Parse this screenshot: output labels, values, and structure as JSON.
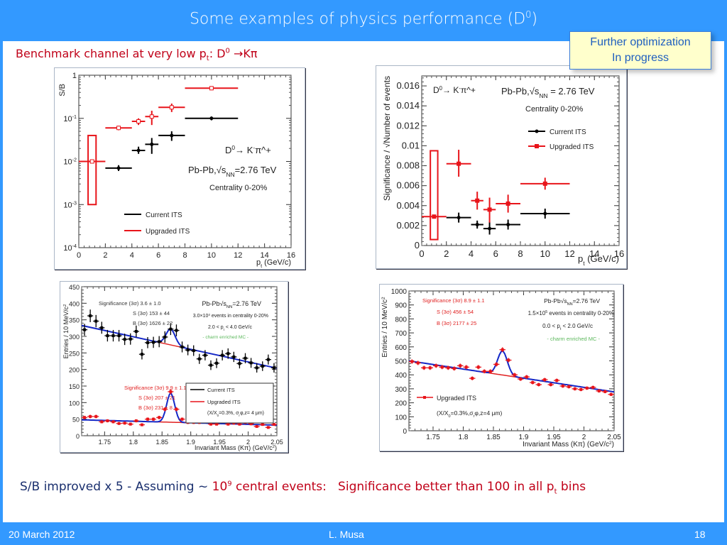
{
  "slide": {
    "title": "Some examples of physics performance (D",
    "title_sup": "0",
    "title_end": ")",
    "subtitle_pre": "Benchmark channel at very low p",
    "subtitle_sub": "t",
    "subtitle_mid": ": D",
    "subtitle_sup": "0",
    "subtitle_end": " →Kπ",
    "callout_line1": "Further optimization",
    "callout_line2": "In progress",
    "summary_a": "S/B improved x 5 - Assuming ~ ",
    "summary_b": "10",
    "summary_b_sup": "9",
    "summary_c": " central events:",
    "summary_d": "   Significance better than 100 in all p",
    "summary_d_sub": "t",
    "summary_e": " bins",
    "footer_date": "20 March 2012",
    "footer_author": "L. Musa",
    "footer_page": "18",
    "colors": {
      "frame": "#3399ff",
      "accent_red": "#c00018",
      "navy": "#1a2f6e",
      "current": "#000000",
      "upgraded": "#e8141a",
      "fit": "#1428c8",
      "callout_bg": "#ffffcc"
    }
  },
  "chart_data": [
    {
      "type": "scatter",
      "id": "sb",
      "ylabel": "S/B",
      "xlabel": "p_t (GeV/c)",
      "yscale": "log",
      "ylim": [
        0.0001,
        1
      ],
      "xlim": [
        0,
        16
      ],
      "xticks": [
        0,
        2,
        4,
        6,
        8,
        10,
        12,
        14,
        16
      ],
      "yticks": [
        {
          "v": 1,
          "l": "1"
        },
        {
          "v": 0.1,
          "l": "10^-1"
        },
        {
          "v": 0.01,
          "l": "10^-2"
        },
        {
          "v": 0.001,
          "l": "10^-3"
        },
        {
          "v": 0.0001,
          "l": "10^-4"
        }
      ],
      "annotations": [
        "D0 → K- π+",
        "Pb-Pb, √sNN=2.76 TeV",
        "Centrality 0-20%"
      ],
      "legend": [
        "Current ITS",
        "Upgraded ITS"
      ],
      "legend_position": "bottom-left",
      "series": [
        {
          "name": "Current ITS",
          "points": [
            {
              "x": 3,
              "xlo": 2,
              "xhi": 4,
              "y": 0.007,
              "ylo": 0.006,
              "yhi": 0.0082
            },
            {
              "x": 4.5,
              "xlo": 4,
              "xhi": 5,
              "y": 0.018,
              "ylo": 0.015,
              "yhi": 0.022
            },
            {
              "x": 5.5,
              "xlo": 5,
              "xhi": 6,
              "y": 0.025,
              "ylo": 0.015,
              "yhi": 0.035
            },
            {
              "x": 7,
              "xlo": 6,
              "xhi": 8,
              "y": 0.04,
              "ylo": 0.03,
              "yhi": 0.05
            },
            {
              "x": 10,
              "xlo": 8,
              "xhi": 12,
              "y": 0.1,
              "ylo": 0.09,
              "yhi": 0.11
            }
          ]
        },
        {
          "name": "Upgraded ITS",
          "points": [
            {
              "x": 1,
              "xlo": 0,
              "xhi": 2,
              "y": 0.01,
              "ylo": 0.0095,
              "yhi": 0.0105,
              "box": [
                0.001,
                0.04
              ]
            },
            {
              "x": 3,
              "xlo": 2,
              "xhi": 4,
              "y": 0.06,
              "ylo": 0.053,
              "yhi": 0.067
            },
            {
              "x": 4.5,
              "xlo": 4,
              "xhi": 5,
              "y": 0.085,
              "ylo": 0.07,
              "yhi": 0.1
            },
            {
              "x": 5.5,
              "xlo": 5,
              "xhi": 6,
              "y": 0.11,
              "ylo": 0.07,
              "yhi": 0.15
            },
            {
              "x": 7,
              "xlo": 6,
              "xhi": 8,
              "y": 0.18,
              "ylo": 0.14,
              "yhi": 0.22
            },
            {
              "x": 10,
              "xlo": 8,
              "xhi": 12,
              "y": 0.5,
              "ylo": 0.45,
              "yhi": 0.55
            }
          ]
        }
      ]
    },
    {
      "type": "scatter",
      "id": "sig",
      "ylabel": "Significance / √Number of events",
      "xlabel": "p_t (GeV/c)",
      "ylim": [
        0,
        0.017
      ],
      "xlim": [
        0,
        16
      ],
      "xticks": [
        0,
        2,
        4,
        6,
        8,
        10,
        12,
        14,
        16
      ],
      "yticks": [
        {
          "v": 0,
          "l": "0"
        },
        {
          "v": 0.002,
          "l": "0.002"
        },
        {
          "v": 0.004,
          "l": "0.004"
        },
        {
          "v": 0.006,
          "l": "0.006"
        },
        {
          "v": 0.008,
          "l": "0.008"
        },
        {
          "v": 0.01,
          "l": "0.01"
        },
        {
          "v": 0.012,
          "l": "0.012"
        },
        {
          "v": 0.014,
          "l": "0.014"
        },
        {
          "v": 0.016,
          "l": "0.016"
        }
      ],
      "annotations": [
        "D0 → K- π+",
        "Pb-Pb, √sNN = 2.76 TeV",
        "Centrality 0-20%"
      ],
      "legend": [
        "Current ITS",
        "Upgraded ITS"
      ],
      "legend_position": "top-right",
      "series": [
        {
          "name": "Current ITS",
          "points": [
            {
              "x": 3,
              "xlo": 2,
              "xhi": 4,
              "y": 0.0028,
              "ylo": 0.0023,
              "yhi": 0.0033
            },
            {
              "x": 4.5,
              "xlo": 4,
              "xhi": 5,
              "y": 0.0021,
              "ylo": 0.0017,
              "yhi": 0.0025
            },
            {
              "x": 5.5,
              "xlo": 5,
              "xhi": 6,
              "y": 0.0017,
              "ylo": 0.0011,
              "yhi": 0.0024
            },
            {
              "x": 7,
              "xlo": 6,
              "xhi": 8,
              "y": 0.0021,
              "ylo": 0.0016,
              "yhi": 0.0026
            },
            {
              "x": 10,
              "xlo": 8,
              "xhi": 12,
              "y": 0.0032,
              "ylo": 0.0027,
              "yhi": 0.0037
            }
          ]
        },
        {
          "name": "Upgraded ITS",
          "points": [
            {
              "x": 1,
              "xlo": 0,
              "xhi": 2,
              "y": 0.0029,
              "ylo": 0.0028,
              "yhi": 0.003,
              "box": [
                0.0006,
                0.0095
              ]
            },
            {
              "x": 3,
              "xlo": 2,
              "xhi": 4,
              "y": 0.0082,
              "ylo": 0.0069,
              "yhi": 0.0096
            },
            {
              "x": 4.5,
              "xlo": 4,
              "xhi": 5,
              "y": 0.0045,
              "ylo": 0.0036,
              "yhi": 0.0054
            },
            {
              "x": 5.5,
              "xlo": 5,
              "xhi": 6,
              "y": 0.0036,
              "ylo": 0.0023,
              "yhi": 0.0048
            },
            {
              "x": 7,
              "xlo": 6,
              "xhi": 8,
              "y": 0.0042,
              "ylo": 0.0033,
              "yhi": 0.0051
            },
            {
              "x": 10,
              "xlo": 8,
              "xhi": 12,
              "y": 0.0062,
              "ylo": 0.0056,
              "yhi": 0.0068
            }
          ]
        }
      ]
    },
    {
      "type": "scatter",
      "id": "mass1",
      "ylabel": "Entries / 10 MeV/c^2",
      "xlabel": "Invariant Mass (Kπ) (GeV/c^2)",
      "ylim": [
        0,
        450
      ],
      "xlim": [
        1.71,
        2.05
      ],
      "xticks": [
        1.75,
        1.8,
        1.85,
        1.9,
        1.95,
        2,
        2.05
      ],
      "yticks": [
        0,
        50,
        100,
        150,
        200,
        250,
        300,
        350,
        400,
        450
      ],
      "annotations_black": [
        "Significance (3σ) 3.6 ± 1.0",
        "S (3σ) 153 ± 44",
        "B (3σ) 1626 ± 22"
      ],
      "annotations_red": [
        "Significance (3σ) 9.9 ± 1.1",
        "S (3σ) 207 ± 21",
        "B (3σ) 231 ± 8"
      ],
      "annotations_right": [
        "Pb-Pb√sNN=2.76 TeV",
        "3.0×10^4 events in centrality 0-20%",
        "2.0 < pt D0 < 4.0 GeV/c",
        "- charm enriched MC -"
      ],
      "legend": [
        "Current ITS",
        "Upgraded ITS",
        "(X/X0=0.3%, σrφ,z= 4 μm)"
      ],
      "legend_position": "bottom-right",
      "fits": [
        {
          "bg": [
            333,
            204
          ],
          "peak": {
            "mu": 1.865,
            "sigma": 0.008,
            "amp": 48
          }
        },
        {
          "bg": [
            48,
            32
          ],
          "peak": {
            "mu": 1.865,
            "sigma": 0.007,
            "amp": 88
          }
        }
      ],
      "series": [
        {
          "name": "Current ITS",
          "x": [
            1.715,
            1.725,
            1.735,
            1.745,
            1.755,
            1.765,
            1.775,
            1.785,
            1.795,
            1.805,
            1.815,
            1.825,
            1.835,
            1.845,
            1.855,
            1.865,
            1.875,
            1.885,
            1.895,
            1.905,
            1.915,
            1.925,
            1.935,
            1.945,
            1.955,
            1.965,
            1.975,
            1.985,
            1.995,
            2.005,
            2.015,
            2.025,
            2.035,
            2.045
          ],
          "y": [
            320,
            362,
            346,
            326,
            302,
            302,
            302,
            291,
            292,
            315,
            246,
            281,
            282,
            284,
            298,
            322,
            318,
            268,
            259,
            257,
            232,
            243,
            213,
            219,
            243,
            248,
            238,
            218,
            234,
            220,
            205,
            210,
            230,
            205
          ]
        },
        {
          "name": "Upgraded ITS",
          "x": [
            1.715,
            1.725,
            1.735,
            1.745,
            1.755,
            1.765,
            1.775,
            1.785,
            1.795,
            1.805,
            1.815,
            1.825,
            1.835,
            1.845,
            1.855,
            1.865,
            1.875,
            1.885,
            1.895,
            1.905,
            1.915,
            1.925,
            1.935,
            1.945,
            1.955,
            1.965,
            1.975,
            1.985,
            1.995,
            2.005,
            2.015,
            2.025,
            2.035,
            2.045
          ],
          "y": [
            55,
            58,
            58,
            42,
            45,
            42,
            37,
            38,
            35,
            45,
            33,
            50,
            50,
            55,
            80,
            133,
            80,
            50,
            40,
            40,
            40,
            45,
            35,
            35,
            45,
            35,
            38,
            35,
            40,
            36,
            28,
            34,
            25,
            34
          ]
        }
      ]
    },
    {
      "type": "scatter",
      "id": "mass2",
      "ylabel": "Entries / 10 MeV/c^2",
      "xlabel": "Invariant Mass (Kπ) (GeV/c^2)",
      "ylim": [
        0,
        1000
      ],
      "xlim": [
        1.71,
        2.05
      ],
      "xticks": [
        1.75,
        1.8,
        1.85,
        1.9,
        1.95,
        2,
        2.05
      ],
      "yticks": [
        0,
        100,
        200,
        300,
        400,
        500,
        600,
        700,
        800,
        900,
        1000
      ],
      "annotations_red": [
        "Significance (3σ) 8.9 ± 1.1",
        "S (3σ) 456 ± 54",
        "B (3σ) 2177 ± 25"
      ],
      "annotations_right": [
        "Pb-Pb√sNN=2.76 TeV",
        "1.5×10^5 events in centrality 0-20%",
        "0.0 < pt D0 < 2.0 GeV/c",
        "- charm enriched MC -"
      ],
      "legend": [
        "Upgraded ITS",
        "(X/X0=0.3%, σrφ,z=4 μm)"
      ],
      "legend_position": "bottom-left",
      "fits": [
        {
          "bg": [
            500,
            278
          ],
          "peak": {
            "mu": 1.865,
            "sigma": 0.008,
            "amp": 172
          }
        }
      ],
      "series": [
        {
          "name": "Upgraded ITS",
          "x": [
            1.715,
            1.725,
            1.735,
            1.745,
            1.755,
            1.765,
            1.775,
            1.785,
            1.795,
            1.805,
            1.815,
            1.825,
            1.835,
            1.845,
            1.855,
            1.865,
            1.875,
            1.885,
            1.895,
            1.905,
            1.915,
            1.925,
            1.935,
            1.945,
            1.955,
            1.965,
            1.975,
            1.985,
            1.995,
            2.005,
            2.015,
            2.025,
            2.035,
            2.045
          ],
          "y": [
            495,
            485,
            450,
            450,
            465,
            455,
            450,
            445,
            465,
            455,
            375,
            455,
            425,
            425,
            475,
            580,
            505,
            400,
            370,
            385,
            345,
            330,
            365,
            330,
            360,
            320,
            315,
            300,
            295,
            305,
            310,
            285,
            280,
            260
          ]
        }
      ]
    }
  ]
}
